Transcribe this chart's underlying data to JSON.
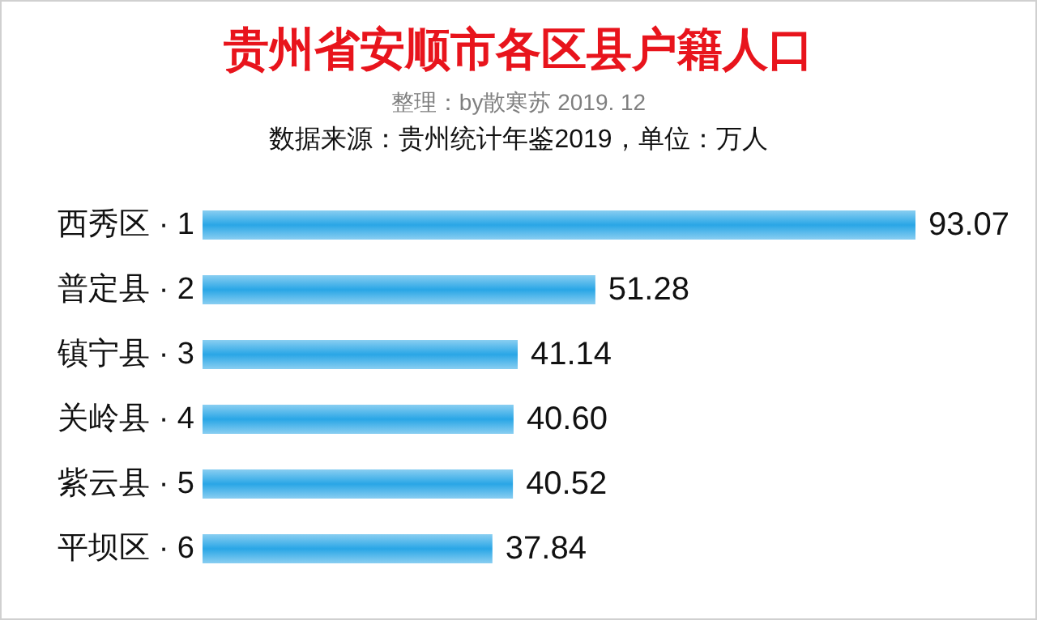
{
  "chart_data": {
    "type": "bar",
    "orientation": "horizontal",
    "title": "贵州省安顺市各区县户籍人口",
    "subtitle": "整理：by散寒苏  2019. 12",
    "annotations": [
      "数据来源：贵州统计年鉴2019，单位：万人"
    ],
    "categories": [
      "西秀区 · 1",
      "普定县 · 2",
      "镇宁县 · 3",
      "关岭县 · 4",
      "紫云县 · 5",
      "平坝区 · 6"
    ],
    "values": [
      93.07,
      51.28,
      41.14,
      40.6,
      40.52,
      37.84
    ],
    "value_labels": [
      "93.07",
      "51.28",
      "41.14",
      "40.60",
      "40.52",
      "37.84"
    ],
    "color": "#29a6e6"
  }
}
